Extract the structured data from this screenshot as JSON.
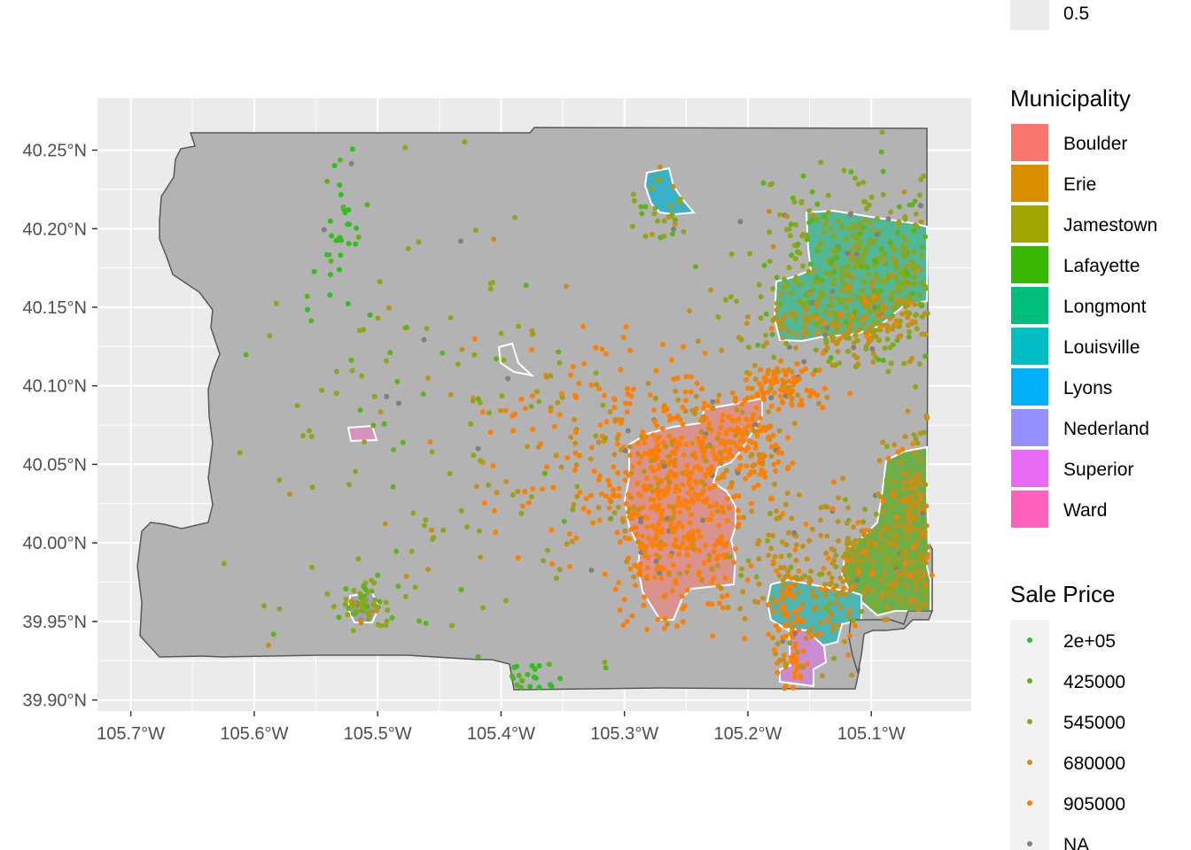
{
  "colors": {
    "panel": "#ebebeb",
    "grid": "#ffffff",
    "county": "#b3b3b3",
    "county_border": "#595959",
    "na_point": "#808080"
  },
  "legend_top": {
    "label": "0.5"
  },
  "municipality_legend": {
    "title": "Municipality",
    "items": [
      {
        "label": "Boulder",
        "color": "#F8766D"
      },
      {
        "label": "Erie",
        "color": "#D89000"
      },
      {
        "label": "Jamestown",
        "color": "#A3A500"
      },
      {
        "label": "Lafayette",
        "color": "#39B600"
      },
      {
        "label": "Longmont",
        "color": "#00BF7D"
      },
      {
        "label": "Louisville",
        "color": "#00BFC4"
      },
      {
        "label": "Lyons",
        "color": "#00B0F6"
      },
      {
        "label": "Nederland",
        "color": "#9590FF"
      },
      {
        "label": "Superior",
        "color": "#E76BF3"
      },
      {
        "label": "Ward",
        "color": "#FF62BC"
      }
    ]
  },
  "price_legend": {
    "title": "Sale Price",
    "items": [
      {
        "label": "2e+05",
        "color": "#2cc21a"
      },
      {
        "label": "425000",
        "color": "#5cb31c"
      },
      {
        "label": "545000",
        "color": "#8fa61a"
      },
      {
        "label": "680000",
        "color": "#c3911a"
      },
      {
        "label": "905000",
        "color": "#ff7f00"
      },
      {
        "label": "NA",
        "color": "#808080"
      }
    ]
  },
  "chart_data": {
    "type": "scatter",
    "x_ticks": [
      {
        "value": -105.7,
        "label": "105.7°W"
      },
      {
        "value": -105.6,
        "label": "105.6°W"
      },
      {
        "value": -105.5,
        "label": "105.5°W"
      },
      {
        "value": -105.4,
        "label": "105.4°W"
      },
      {
        "value": -105.3,
        "label": "105.3°W"
      },
      {
        "value": -105.2,
        "label": "105.2°W"
      },
      {
        "value": -105.1,
        "label": "105.1°W"
      }
    ],
    "y_ticks": [
      {
        "value": 39.9,
        "label": "39.90°N"
      },
      {
        "value": 39.95,
        "label": "39.95°N"
      },
      {
        "value": 40.0,
        "label": "40.00°N"
      },
      {
        "value": 40.05,
        "label": "40.05°N"
      },
      {
        "value": 40.1,
        "label": "40.10°N"
      },
      {
        "value": 40.15,
        "label": "40.15°N"
      },
      {
        "value": 40.2,
        "label": "40.20°N"
      },
      {
        "value": 40.25,
        "label": "40.25°N"
      }
    ],
    "xlim": [
      -105.727,
      -105.019
    ],
    "ylim": [
      39.893,
      40.283
    ],
    "clusters": [
      {
        "lon": -105.26,
        "lat": 40.02,
        "spread_lon": 0.03,
        "spread_lat": 0.035,
        "count": 420,
        "category": 4
      },
      {
        "lon": -105.2,
        "lat": 40.065,
        "spread_lon": 0.018,
        "spread_lat": 0.012,
        "count": 120,
        "category": 4
      },
      {
        "lon": -105.1,
        "lat": 40.17,
        "spread_lon": 0.045,
        "spread_lat": 0.03,
        "count": 500,
        "category": 2
      },
      {
        "lon": -105.12,
        "lat": 40.14,
        "spread_lon": 0.04,
        "spread_lat": 0.01,
        "count": 140,
        "category": 3
      },
      {
        "lon": -105.12,
        "lat": 39.985,
        "spread_lon": 0.045,
        "spread_lat": 0.025,
        "count": 330,
        "category": 3
      },
      {
        "lon": -105.065,
        "lat": 40.025,
        "spread_lon": 0.012,
        "spread_lat": 0.03,
        "count": 150,
        "category": 3
      },
      {
        "lon": -105.165,
        "lat": 39.935,
        "spread_lon": 0.008,
        "spread_lat": 0.02,
        "count": 80,
        "category": 4
      },
      {
        "lon": -105.17,
        "lat": 40.1,
        "spread_lon": 0.018,
        "spread_lat": 0.008,
        "count": 90,
        "category": 4
      },
      {
        "lon": -105.51,
        "lat": 39.96,
        "spread_lon": 0.01,
        "spread_lat": 0.007,
        "count": 60,
        "category": 2
      },
      {
        "lon": -105.27,
        "lat": 40.215,
        "spread_lon": 0.01,
        "spread_lat": 0.01,
        "count": 30,
        "category": 2
      },
      {
        "lon": -105.38,
        "lat": 39.915,
        "spread_lon": 0.015,
        "spread_lat": 0.004,
        "count": 30,
        "category": 0
      },
      {
        "lon": -105.53,
        "lat": 40.21,
        "spread_lon": 0.012,
        "spread_lat": 0.03,
        "count": 40,
        "category": 0
      },
      {
        "lon": -105.3,
        "lat": 40.06,
        "spread_lon": 0.06,
        "spread_lat": 0.04,
        "count": 220,
        "category": 4
      },
      {
        "lon": -105.45,
        "lat": 40.06,
        "spread_lon": 0.08,
        "spread_lat": 0.08,
        "count": 160,
        "category": 2
      }
    ]
  }
}
